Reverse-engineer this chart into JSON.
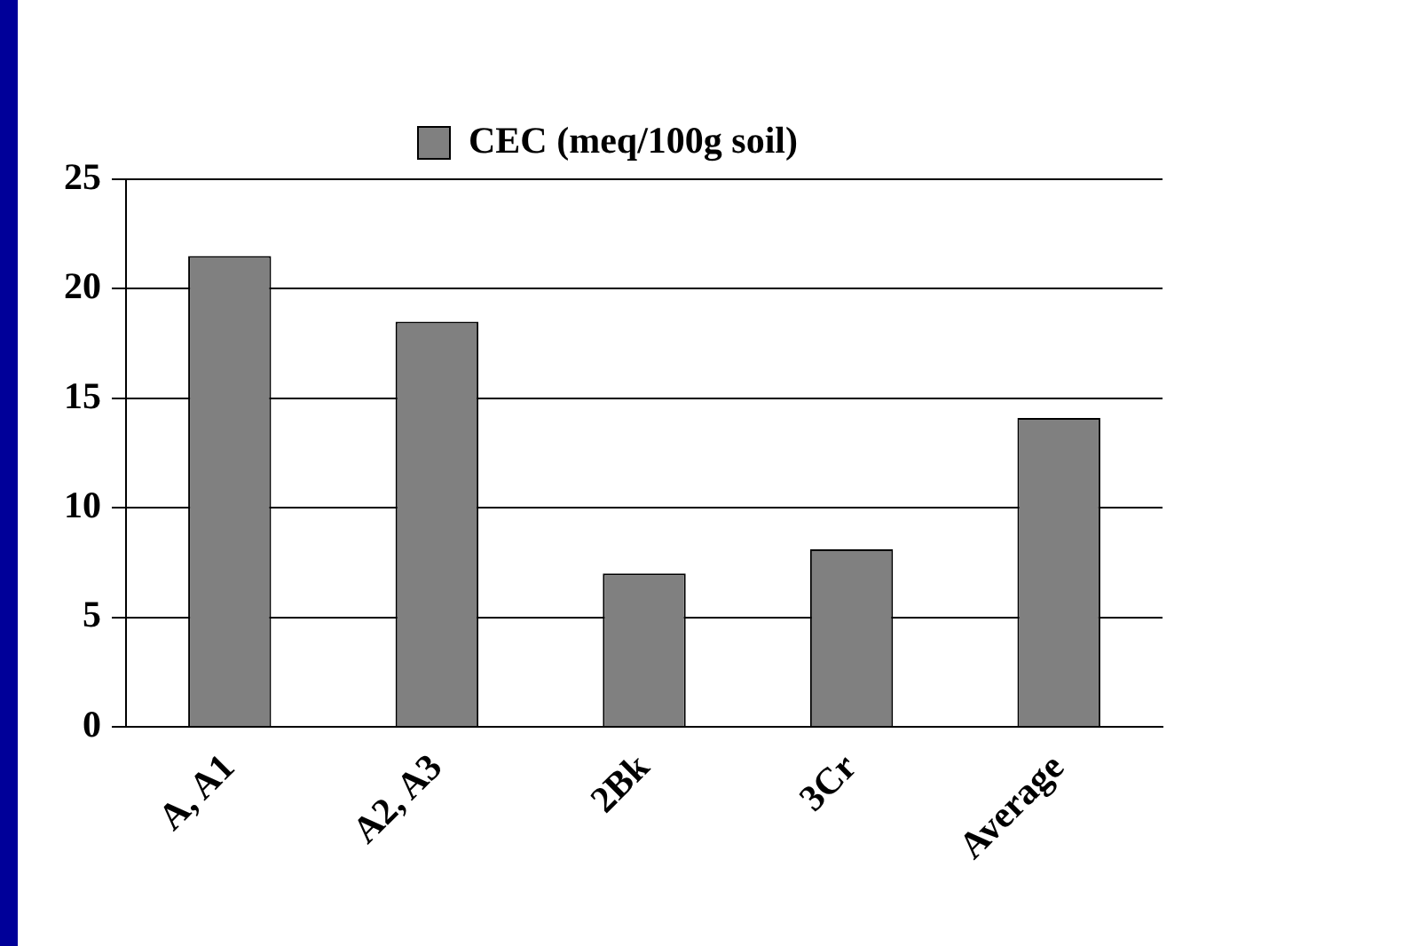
{
  "chart_data": {
    "type": "bar",
    "categories": [
      "A, A1",
      "A2, A3",
      "2Bk",
      "3Cr",
      "Average"
    ],
    "series": [
      {
        "name": "CEC (meq/100g soil)",
        "color": "#808080",
        "values": [
          21.5,
          18.5,
          7,
          8.1,
          14.1
        ]
      }
    ],
    "ylim": [
      0,
      25
    ],
    "yticks": [
      0,
      5,
      10,
      15,
      20,
      25
    ],
    "grid": "y",
    "legend": "top"
  }
}
